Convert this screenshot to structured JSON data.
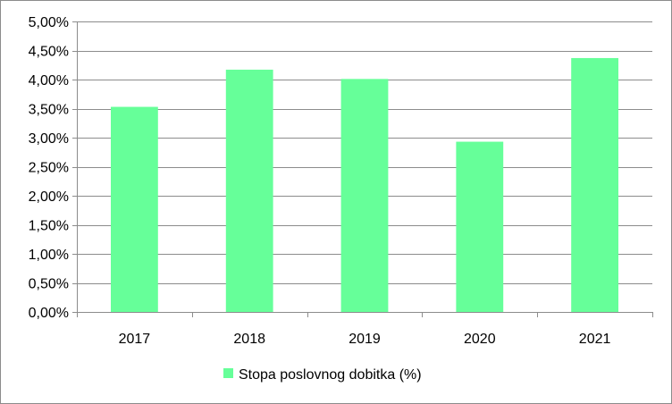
{
  "chart_data": {
    "type": "bar",
    "categories": [
      "2017",
      "2018",
      "2019",
      "2020",
      "2021"
    ],
    "series": [
      {
        "name": "Stopa poslovnog dobitka (%)",
        "values": [
          3.53,
          4.17,
          4.01,
          2.93,
          4.37
        ],
        "color": "#66ff99"
      }
    ],
    "title": "",
    "xlabel": "",
    "ylabel": "",
    "ylim": [
      0,
      5
    ],
    "yticks": [
      0,
      0.5,
      1,
      1.5,
      2,
      2.5,
      3,
      3.5,
      4,
      4.5,
      5
    ],
    "ytick_labels": [
      "0,00%",
      "0,50%",
      "1,00%",
      "1,50%",
      "2,00%",
      "2,50%",
      "3,00%",
      "3,50%",
      "4,00%",
      "4,50%",
      "5,00%"
    ],
    "grid": true,
    "legend_position": "bottom",
    "colors": {
      "gridline": "#8c8c8c",
      "axis": "#8c8c8c",
      "frame": "#8c8c8c"
    }
  }
}
